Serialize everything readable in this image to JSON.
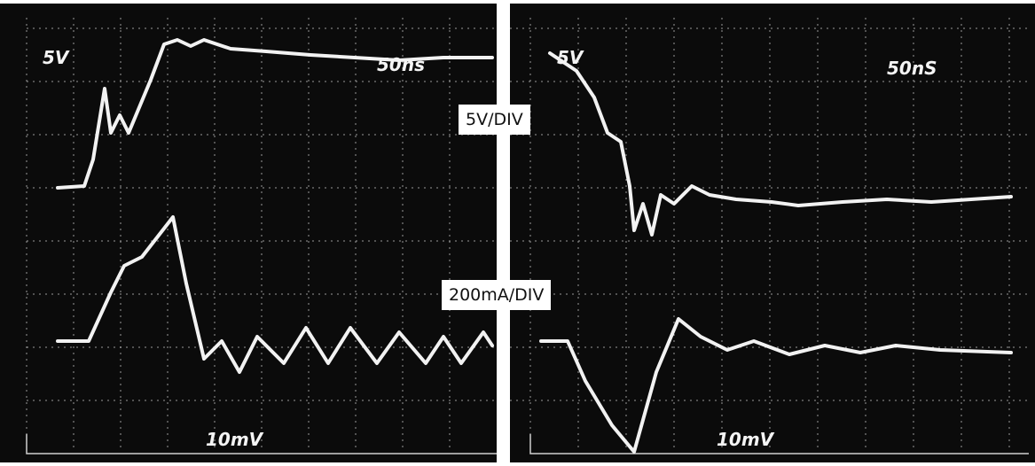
{
  "left_panel": {
    "volts_label": "5V",
    "time_label": "50ns",
    "bottom_label": "10mV"
  },
  "right_panel": {
    "volts_label": "5V",
    "time_label": "50nS",
    "bottom_label": "10mV"
  },
  "callouts": {
    "voltage_scale": "5V/DIV",
    "current_scale": "200mA/DIV"
  }
}
